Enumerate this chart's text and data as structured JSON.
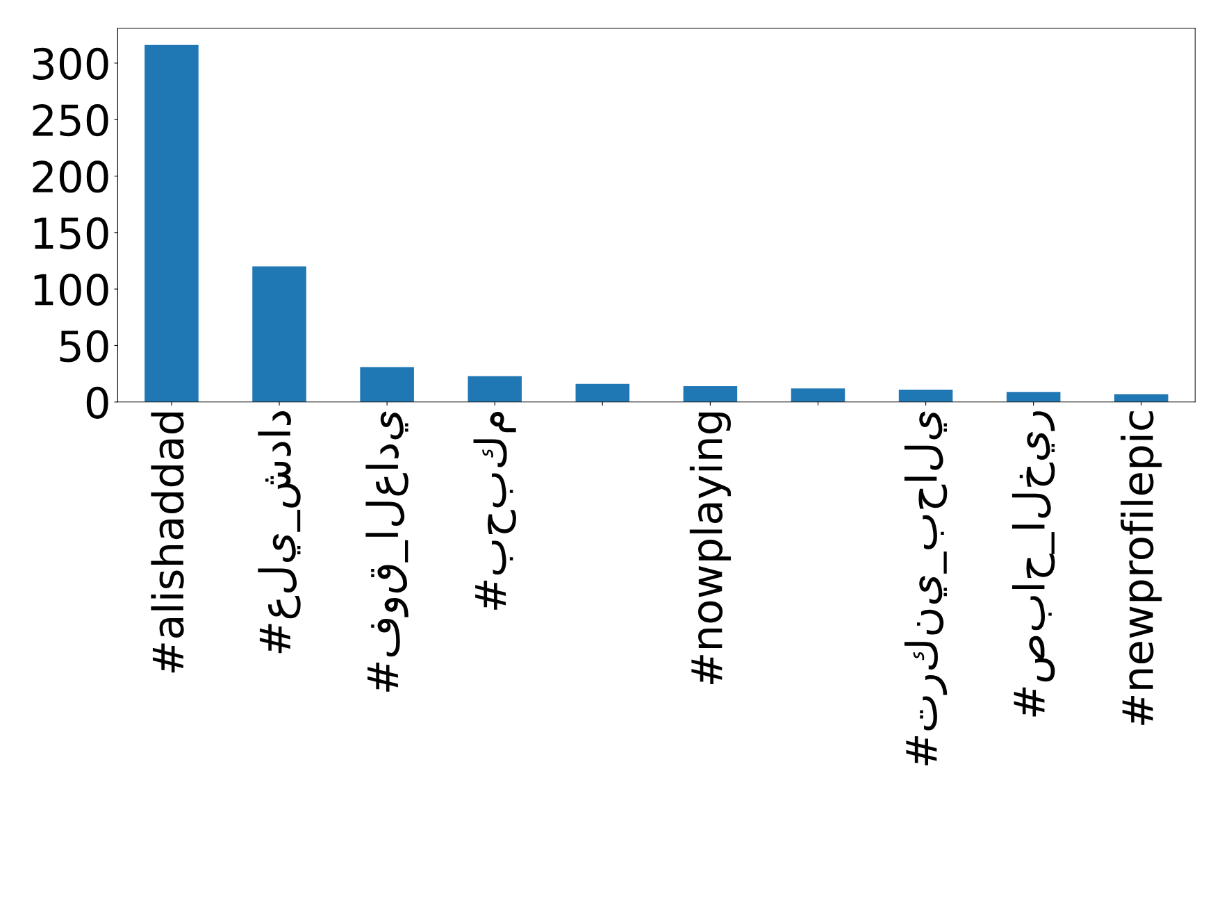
{
  "chart_data": {
    "type": "bar",
    "categories": [
      "#alishaddad",
      "#علي_شداد",
      "#فوق_العادي",
      "#بحبكم",
      null,
      "#nowplaying",
      null,
      "#تركني_بحالي",
      "#صباح_الخير",
      "#newprofilepic"
    ],
    "values": [
      316,
      120,
      31,
      23,
      16,
      14,
      12,
      11,
      9,
      7
    ],
    "color": "#1f77b4",
    "ylim": [
      0,
      331
    ],
    "yticks": [
      0,
      50,
      100,
      150,
      200,
      250,
      300
    ],
    "grid": false,
    "legend": false
  }
}
